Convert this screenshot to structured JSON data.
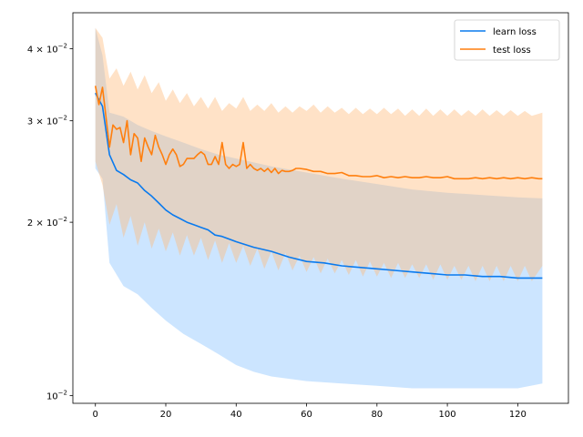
{
  "chart_data": {
    "type": "line",
    "title": "",
    "xlabel": "",
    "ylabel": "",
    "yscale": "log",
    "xlim": [
      -6.4,
      134.4
    ],
    "ylim": [
      0.0097,
      0.0462
    ],
    "grid": false,
    "legend_position": "top-right",
    "x_ticks": [
      0,
      20,
      40,
      60,
      80,
      100,
      120
    ],
    "x_tick_labels": [
      "0",
      "20",
      "40",
      "60",
      "80",
      "100",
      "120"
    ],
    "y_ticks": [
      0.01,
      0.02,
      0.03,
      0.04
    ],
    "y_tick_labels": [
      {
        "mantissa": "",
        "base": "10",
        "exp": "−2"
      },
      {
        "mantissa": "2 × ",
        "base": "10",
        "exp": "−2"
      },
      {
        "mantissa": "3 × ",
        "base": "10",
        "exp": "−2"
      },
      {
        "mantissa": "4 × ",
        "base": "10",
        "exp": "−2"
      }
    ],
    "series": [
      {
        "name": "learn loss",
        "color": "#0a7aee",
        "band_color": "#86c2ff",
        "points": [
          [
            0,
            0.0335
          ],
          [
            2,
            0.0318
          ],
          [
            4,
            0.0262
          ],
          [
            6,
            0.0246
          ],
          [
            8,
            0.0242
          ],
          [
            10,
            0.0237
          ],
          [
            12,
            0.0234
          ],
          [
            14,
            0.0227
          ],
          [
            16,
            0.0222
          ],
          [
            18,
            0.0216
          ],
          [
            20,
            0.021
          ],
          [
            22,
            0.0206
          ],
          [
            24,
            0.0203
          ],
          [
            26,
            0.02
          ],
          [
            28,
            0.0198
          ],
          [
            30,
            0.0196
          ],
          [
            32,
            0.0194
          ],
          [
            34,
            0.019
          ],
          [
            36,
            0.0189
          ],
          [
            40,
            0.0185
          ],
          [
            45,
            0.0181
          ],
          [
            50,
            0.0178
          ],
          [
            55,
            0.0174
          ],
          [
            60,
            0.0171
          ],
          [
            65,
            0.017
          ],
          [
            70,
            0.0168
          ],
          [
            75,
            0.0167
          ],
          [
            80,
            0.0166
          ],
          [
            85,
            0.0165
          ],
          [
            90,
            0.0164
          ],
          [
            95,
            0.0163
          ],
          [
            100,
            0.0162
          ],
          [
            105,
            0.0162
          ],
          [
            110,
            0.0161
          ],
          [
            115,
            0.0161
          ],
          [
            120,
            0.016
          ],
          [
            127,
            0.016
          ]
        ],
        "upper": [
          [
            0,
            0.0435
          ],
          [
            2,
            0.039
          ],
          [
            4,
            0.031
          ],
          [
            8,
            0.0305
          ],
          [
            12,
            0.0295
          ],
          [
            16,
            0.0288
          ],
          [
            20,
            0.0282
          ],
          [
            25,
            0.0275
          ],
          [
            30,
            0.0268
          ],
          [
            35,
            0.0262
          ],
          [
            40,
            0.0258
          ],
          [
            45,
            0.0254
          ],
          [
            50,
            0.025
          ],
          [
            60,
            0.0244
          ],
          [
            70,
            0.0238
          ],
          [
            80,
            0.0233
          ],
          [
            90,
            0.0228
          ],
          [
            100,
            0.0225
          ],
          [
            110,
            0.0223
          ],
          [
            120,
            0.0221
          ],
          [
            127,
            0.022
          ]
        ],
        "lower": [
          [
            0,
            0.0248
          ],
          [
            2,
            0.0238
          ],
          [
            4,
            0.017
          ],
          [
            8,
            0.0155
          ],
          [
            12,
            0.015
          ],
          [
            16,
            0.0142
          ],
          [
            20,
            0.0135
          ],
          [
            25,
            0.0128
          ],
          [
            30,
            0.0123
          ],
          [
            35,
            0.0118
          ],
          [
            40,
            0.0113
          ],
          [
            45,
            0.011
          ],
          [
            50,
            0.0108
          ],
          [
            60,
            0.0106
          ],
          [
            70,
            0.0105
          ],
          [
            80,
            0.0104
          ],
          [
            90,
            0.0103
          ],
          [
            100,
            0.0103
          ],
          [
            110,
            0.0103
          ],
          [
            120,
            0.0103
          ],
          [
            127,
            0.0105
          ]
        ]
      },
      {
        "name": "test loss",
        "color": "#ff7f0e",
        "band_color": "#ffb97a",
        "points": [
          [
            0,
            0.0345
          ],
          [
            1,
            0.032
          ],
          [
            2,
            0.0343
          ],
          [
            3,
            0.0305
          ],
          [
            4,
            0.027
          ],
          [
            5,
            0.0295
          ],
          [
            6,
            0.029
          ],
          [
            7,
            0.0292
          ],
          [
            8,
            0.0275
          ],
          [
            9,
            0.03
          ],
          [
            10,
            0.0262
          ],
          [
            11,
            0.0285
          ],
          [
            12,
            0.028
          ],
          [
            13,
            0.0255
          ],
          [
            14,
            0.028
          ],
          [
            15,
            0.027
          ],
          [
            16,
            0.0262
          ],
          [
            17,
            0.0283
          ],
          [
            18,
            0.027
          ],
          [
            19,
            0.0262
          ],
          [
            20,
            0.0252
          ],
          [
            21,
            0.0262
          ],
          [
            22,
            0.0268
          ],
          [
            23,
            0.0262
          ],
          [
            24,
            0.025
          ],
          [
            25,
            0.0252
          ],
          [
            26,
            0.0258
          ],
          [
            27,
            0.0258
          ],
          [
            28,
            0.0258
          ],
          [
            29,
            0.0262
          ],
          [
            30,
            0.0265
          ],
          [
            31,
            0.0262
          ],
          [
            32,
            0.0252
          ],
          [
            33,
            0.0252
          ],
          [
            34,
            0.026
          ],
          [
            35,
            0.0252
          ],
          [
            36,
            0.0275
          ],
          [
            37,
            0.0252
          ],
          [
            38,
            0.0248
          ],
          [
            39,
            0.0252
          ],
          [
            40,
            0.025
          ],
          [
            41,
            0.0252
          ],
          [
            42,
            0.0275
          ],
          [
            43,
            0.0248
          ],
          [
            44,
            0.0252
          ],
          [
            45,
            0.0248
          ],
          [
            46,
            0.0246
          ],
          [
            47,
            0.0248
          ],
          [
            48,
            0.0245
          ],
          [
            49,
            0.0248
          ],
          [
            50,
            0.0244
          ],
          [
            51,
            0.0248
          ],
          [
            52,
            0.0243
          ],
          [
            53,
            0.0246
          ],
          [
            54,
            0.0245
          ],
          [
            55,
            0.0245
          ],
          [
            56,
            0.0246
          ],
          [
            57,
            0.0248
          ],
          [
            58,
            0.0248
          ],
          [
            60,
            0.0247
          ],
          [
            62,
            0.0245
          ],
          [
            64,
            0.0245
          ],
          [
            66,
            0.0243
          ],
          [
            68,
            0.0243
          ],
          [
            70,
            0.0244
          ],
          [
            72,
            0.0241
          ],
          [
            74,
            0.0241
          ],
          [
            76,
            0.024
          ],
          [
            78,
            0.024
          ],
          [
            80,
            0.0241
          ],
          [
            82,
            0.0239
          ],
          [
            84,
            0.024
          ],
          [
            86,
            0.0239
          ],
          [
            88,
            0.024
          ],
          [
            90,
            0.0239
          ],
          [
            92,
            0.0239
          ],
          [
            94,
            0.024
          ],
          [
            96,
            0.0239
          ],
          [
            98,
            0.0239
          ],
          [
            100,
            0.024
          ],
          [
            102,
            0.0238
          ],
          [
            104,
            0.0238
          ],
          [
            106,
            0.0238
          ],
          [
            108,
            0.0239
          ],
          [
            110,
            0.0238
          ],
          [
            112,
            0.0239
          ],
          [
            114,
            0.0238
          ],
          [
            116,
            0.0239
          ],
          [
            118,
            0.0238
          ],
          [
            120,
            0.0239
          ],
          [
            122,
            0.0238
          ],
          [
            124,
            0.0239
          ],
          [
            126,
            0.0238
          ],
          [
            127,
            0.0238
          ]
        ],
        "upper": [
          [
            0,
            0.0435
          ],
          [
            2,
            0.0418
          ],
          [
            4,
            0.0355
          ],
          [
            6,
            0.037
          ],
          [
            8,
            0.0345
          ],
          [
            10,
            0.0365
          ],
          [
            12,
            0.034
          ],
          [
            14,
            0.036
          ],
          [
            16,
            0.0335
          ],
          [
            18,
            0.035
          ],
          [
            20,
            0.0325
          ],
          [
            22,
            0.034
          ],
          [
            24,
            0.0322
          ],
          [
            26,
            0.0335
          ],
          [
            28,
            0.0318
          ],
          [
            30,
            0.033
          ],
          [
            32,
            0.0315
          ],
          [
            34,
            0.033
          ],
          [
            36,
            0.0312
          ],
          [
            38,
            0.0322
          ],
          [
            40,
            0.0315
          ],
          [
            42,
            0.033
          ],
          [
            44,
            0.0312
          ],
          [
            46,
            0.032
          ],
          [
            48,
            0.0312
          ],
          [
            50,
            0.0322
          ],
          [
            52,
            0.031
          ],
          [
            54,
            0.0318
          ],
          [
            56,
            0.031
          ],
          [
            58,
            0.0318
          ],
          [
            60,
            0.0312
          ],
          [
            62,
            0.032
          ],
          [
            64,
            0.031
          ],
          [
            66,
            0.0318
          ],
          [
            68,
            0.031
          ],
          [
            70,
            0.0316
          ],
          [
            72,
            0.0308
          ],
          [
            74,
            0.0316
          ],
          [
            76,
            0.0308
          ],
          [
            78,
            0.0315
          ],
          [
            80,
            0.0308
          ],
          [
            82,
            0.0316
          ],
          [
            84,
            0.0308
          ],
          [
            86,
            0.0315
          ],
          [
            88,
            0.0306
          ],
          [
            90,
            0.0314
          ],
          [
            92,
            0.0306
          ],
          [
            94,
            0.0315
          ],
          [
            96,
            0.0306
          ],
          [
            98,
            0.0314
          ],
          [
            100,
            0.0306
          ],
          [
            102,
            0.0314
          ],
          [
            104,
            0.0306
          ],
          [
            106,
            0.0313
          ],
          [
            108,
            0.0306
          ],
          [
            110,
            0.0314
          ],
          [
            112,
            0.0306
          ],
          [
            114,
            0.0313
          ],
          [
            116,
            0.0306
          ],
          [
            118,
            0.0313
          ],
          [
            120,
            0.0306
          ],
          [
            122,
            0.0312
          ],
          [
            124,
            0.0306
          ],
          [
            127,
            0.031
          ]
        ],
        "lower": [
          [
            0,
            0.0255
          ],
          [
            2,
            0.0232
          ],
          [
            4,
            0.0198
          ],
          [
            6,
            0.0215
          ],
          [
            8,
            0.0188
          ],
          [
            10,
            0.0205
          ],
          [
            12,
            0.0182
          ],
          [
            14,
            0.02
          ],
          [
            16,
            0.018
          ],
          [
            18,
            0.0195
          ],
          [
            20,
            0.0178
          ],
          [
            22,
            0.0192
          ],
          [
            24,
            0.0175
          ],
          [
            26,
            0.019
          ],
          [
            28,
            0.0175
          ],
          [
            30,
            0.0188
          ],
          [
            32,
            0.0172
          ],
          [
            34,
            0.0186
          ],
          [
            36,
            0.017
          ],
          [
            38,
            0.0184
          ],
          [
            40,
            0.017
          ],
          [
            42,
            0.0182
          ],
          [
            44,
            0.0168
          ],
          [
            46,
            0.018
          ],
          [
            48,
            0.0166
          ],
          [
            50,
            0.0178
          ],
          [
            52,
            0.0165
          ],
          [
            54,
            0.0177
          ],
          [
            56,
            0.0165
          ],
          [
            58,
            0.0175
          ],
          [
            60,
            0.0164
          ],
          [
            62,
            0.0174
          ],
          [
            64,
            0.0163
          ],
          [
            66,
            0.0173
          ],
          [
            68,
            0.0163
          ],
          [
            70,
            0.0172
          ],
          [
            72,
            0.0162
          ],
          [
            74,
            0.0172
          ],
          [
            76,
            0.0161
          ],
          [
            78,
            0.0171
          ],
          [
            80,
            0.0161
          ],
          [
            82,
            0.017
          ],
          [
            84,
            0.016
          ],
          [
            86,
            0.017
          ],
          [
            88,
            0.016
          ],
          [
            90,
            0.0169
          ],
          [
            92,
            0.016
          ],
          [
            94,
            0.0169
          ],
          [
            96,
            0.0159
          ],
          [
            98,
            0.0169
          ],
          [
            100,
            0.0159
          ],
          [
            102,
            0.0168
          ],
          [
            104,
            0.0159
          ],
          [
            106,
            0.0168
          ],
          [
            108,
            0.0158
          ],
          [
            110,
            0.0168
          ],
          [
            112,
            0.0158
          ],
          [
            114,
            0.0168
          ],
          [
            116,
            0.0158
          ],
          [
            118,
            0.0168
          ],
          [
            120,
            0.0158
          ],
          [
            122,
            0.0168
          ],
          [
            124,
            0.0158
          ],
          [
            127,
            0.0168
          ]
        ]
      }
    ]
  }
}
